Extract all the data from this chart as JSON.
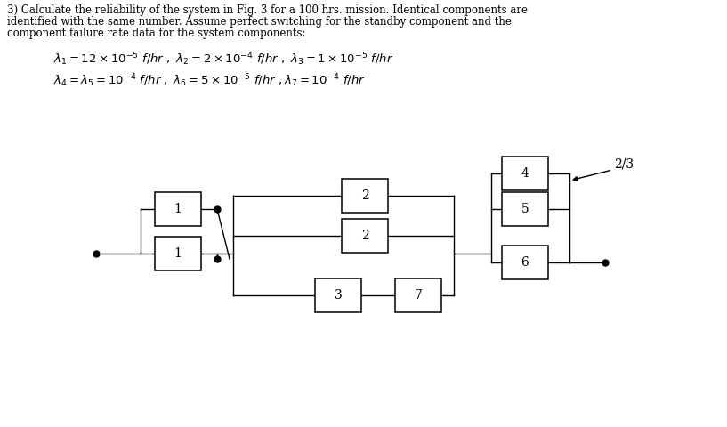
{
  "title_text": "3) Calculate the reliability of the system in Fig. 3 for a 100 hrs. mission. Identical components are\nidentified with the same number. Assume perfect switching for the standby component and the\ncomponent failure rate data for the system components:",
  "background": "#ffffff",
  "text_color": "#000000",
  "box_edgecolor": "#000000",
  "line_color": "#000000",
  "figsize": [
    8.17,
    4.8
  ],
  "dpi": 100,
  "eq1": "$\\lambda_1 = 12\\times10^{-5}\\ f / hr\\ ,\\ \\lambda_2 = 2\\times10^{-4}\\ f / hr\\ ,\\ \\lambda_3 = 1\\times10^{-5}\\ f / hr$",
  "eq2": "$\\lambda_4 = \\lambda_5 = 10^{-4}\\ f / hr\\ ,\\ \\lambda_6 = 5\\times10^{-5}\\ f / hr\\ ,\\lambda_7 = 10^{-4}\\ f / hr$"
}
